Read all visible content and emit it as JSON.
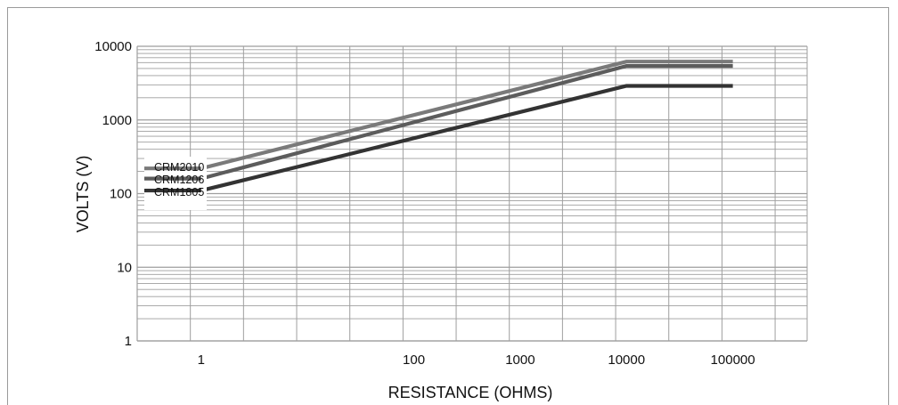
{
  "chart_data": {
    "type": "line",
    "xlabel": "RESISTANCE (OHMS)",
    "ylabel": "VOLTS (V)",
    "x_scale": "log",
    "y_scale": "log",
    "xlim": [
      0.25,
      500000
    ],
    "ylim": [
      1,
      10000
    ],
    "x_ticks": [
      1,
      100,
      1000,
      10000,
      100000
    ],
    "x_tick_labels": [
      "1",
      "100",
      "1000",
      "10000",
      "100000"
    ],
    "y_ticks": [
      1,
      10,
      100,
      1000,
      10000
    ],
    "y_tick_labels": [
      "1",
      "10",
      "100",
      "1000",
      "10000"
    ],
    "grid": true,
    "legend_position": "left",
    "series": [
      {
        "name": "CRM2010",
        "color": "#7a7a7a",
        "x": [
          1,
          10000,
          100000
        ],
        "y": [
          220,
          6200,
          6200
        ]
      },
      {
        "name": "CRM1206",
        "color": "#5c5c5c",
        "x": [
          1,
          10000,
          100000
        ],
        "y": [
          160,
          5400,
          5400
        ]
      },
      {
        "name": "CRM1805",
        "color": "#333333",
        "x": [
          1,
          10000,
          100000
        ],
        "y": [
          110,
          2900,
          2900
        ]
      }
    ]
  }
}
